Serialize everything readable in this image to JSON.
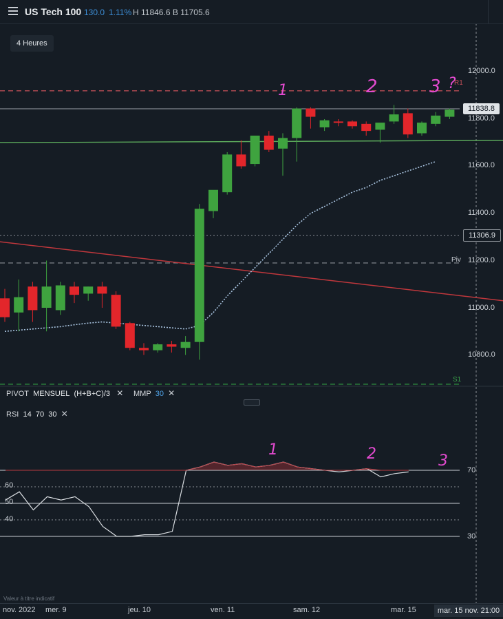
{
  "header": {
    "symbol": "US Tech 100",
    "change": "130.0",
    "change_pct": "1.11%",
    "high_low": "H 11846.6 B 11705.6"
  },
  "timeframe_button": "4 Heures",
  "indicators": {
    "pivot_name": "PIVOT",
    "pivot_period": "MENSUEL",
    "pivot_formula": "(H+B+C)/3",
    "mmp_name": "MMP",
    "mmp_value": "30",
    "close_symbol": "✕"
  },
  "rsi_legend": {
    "name": "RSI",
    "p1": "14",
    "p2": "70",
    "p3": "30"
  },
  "watermark": "Valeur à titre indicatif",
  "x_axis": {
    "ticks": [
      "nov. 2022",
      "mer. 9",
      "jeu. 10",
      "ven. 11",
      "sam. 12",
      "mar. 15"
    ],
    "crosshair_time": "mar. 15 nov. 21:00"
  },
  "y_axis": {
    "ticks": [
      "12000.0",
      "11800.0",
      "11600.0",
      "11400.0",
      "11200.0",
      "11000.0",
      "10800.0"
    ],
    "last_price": "11838.8",
    "crosshair_price": "11306.9",
    "pivot_labels": {
      "r1": "R1",
      "piv": "Piv",
      "s1": "S1"
    }
  },
  "rsi_axis": {
    "right_ticks": [
      "70",
      "30"
    ],
    "left_ticks": [
      "60",
      "50",
      "40"
    ]
  },
  "annotations": [
    "1",
    "2",
    "3",
    "?"
  ],
  "colors": {
    "up": "#3fa33f",
    "down": "#e3262b",
    "ma": "#a9c4e0",
    "trend_green": "#5aa65a",
    "trend_red": "#c0373c",
    "pivot_r1": "#c8505a",
    "pivot_piv": "#8a9096",
    "pivot_s1": "#2f8a3f",
    "annotation": "#e34bd0",
    "rsi": "#d9dde1"
  },
  "chart_data": [
    {
      "type": "candlestick",
      "title": "US Tech 100",
      "timeframe": "4 Heures",
      "ylim": [
        10730,
        12150
      ],
      "candles": [
        {
          "o": 11040,
          "h": 11080,
          "l": 10940,
          "c": 10960
        },
        {
          "o": 10980,
          "h": 11120,
          "l": 10900,
          "c": 11045
        },
        {
          "o": 11090,
          "h": 11110,
          "l": 10940,
          "c": 10990
        },
        {
          "o": 11000,
          "h": 11200,
          "l": 10900,
          "c": 11090
        },
        {
          "o": 10990,
          "h": 11110,
          "l": 10970,
          "c": 11095
        },
        {
          "o": 11090,
          "h": 11110,
          "l": 11020,
          "c": 11055
        },
        {
          "o": 11060,
          "h": 11090,
          "l": 11030,
          "c": 11090
        },
        {
          "o": 11090,
          "h": 11110,
          "l": 11000,
          "c": 11060
        },
        {
          "o": 11055,
          "h": 11070,
          "l": 10910,
          "c": 10920
        },
        {
          "o": 10935,
          "h": 10940,
          "l": 10820,
          "c": 10830
        },
        {
          "o": 10830,
          "h": 10850,
          "l": 10800,
          "c": 10820
        },
        {
          "o": 10820,
          "h": 10850,
          "l": 10810,
          "c": 10845
        },
        {
          "o": 10845,
          "h": 10860,
          "l": 10810,
          "c": 10835
        },
        {
          "o": 10830,
          "h": 10880,
          "l": 10800,
          "c": 10855
        },
        {
          "o": 10855,
          "h": 11440,
          "l": 10780,
          "c": 11420
        },
        {
          "o": 11410,
          "h": 11490,
          "l": 11380,
          "c": 11500
        },
        {
          "o": 11490,
          "h": 11660,
          "l": 11480,
          "c": 11650
        },
        {
          "o": 11650,
          "h": 11710,
          "l": 11590,
          "c": 11600
        },
        {
          "o": 11610,
          "h": 11730,
          "l": 11600,
          "c": 11730
        },
        {
          "o": 11730,
          "h": 11750,
          "l": 11660,
          "c": 11670
        },
        {
          "o": 11675,
          "h": 11740,
          "l": 11560,
          "c": 11720
        },
        {
          "o": 11720,
          "h": 11850,
          "l": 11620,
          "c": 11845
        },
        {
          "o": 11845,
          "h": 11850,
          "l": 11760,
          "c": 11810
        },
        {
          "o": 11765,
          "h": 11800,
          "l": 11750,
          "c": 11795
        },
        {
          "o": 11790,
          "h": 11800,
          "l": 11770,
          "c": 11785
        },
        {
          "o": 11790,
          "h": 11795,
          "l": 11760,
          "c": 11770
        },
        {
          "o": 11780,
          "h": 11790,
          "l": 11730,
          "c": 11750
        },
        {
          "o": 11755,
          "h": 11780,
          "l": 11700,
          "c": 11785
        },
        {
          "o": 11790,
          "h": 11860,
          "l": 11780,
          "c": 11820
        },
        {
          "o": 11825,
          "h": 11845,
          "l": 11720,
          "c": 11735
        },
        {
          "o": 11740,
          "h": 11790,
          "l": 11730,
          "c": 11785
        },
        {
          "o": 11780,
          "h": 11830,
          "l": 11770,
          "c": 11815
        },
        {
          "o": 11810,
          "h": 11845,
          "l": 11800,
          "c": 11840
        }
      ],
      "mmp_30": [
        10900,
        10905,
        10910,
        10915,
        10920,
        10928,
        10935,
        10940,
        10935,
        10930,
        10925,
        10920,
        10915,
        10910,
        10925,
        10980,
        11050,
        11110,
        11170,
        11230,
        11290,
        11350,
        11400,
        11430,
        11460,
        11490,
        11510,
        11540,
        11560,
        11580,
        11600,
        11620
      ],
      "trendlines": [
        {
          "name": "green",
          "from": 11700,
          "to": 11710
        },
        {
          "name": "red",
          "from": 11280,
          "to": 11030
        }
      ],
      "pivots": {
        "R1": 11920,
        "Piv": 11190,
        "S1": 10670
      },
      "last_price": 11838.8,
      "crosshair_price": 11306.9
    },
    {
      "type": "line",
      "title": "RSI 14 70 30",
      "ylim": [
        10,
        95
      ],
      "levels": [
        70,
        50,
        30
      ],
      "values": [
        52,
        57,
        46,
        54,
        52,
        54,
        48,
        36,
        30,
        30,
        31,
        31,
        33,
        70,
        72,
        75,
        73,
        74,
        72,
        73,
        75,
        72,
        71,
        70,
        69,
        70,
        71,
        66,
        68,
        69
      ]
    }
  ]
}
